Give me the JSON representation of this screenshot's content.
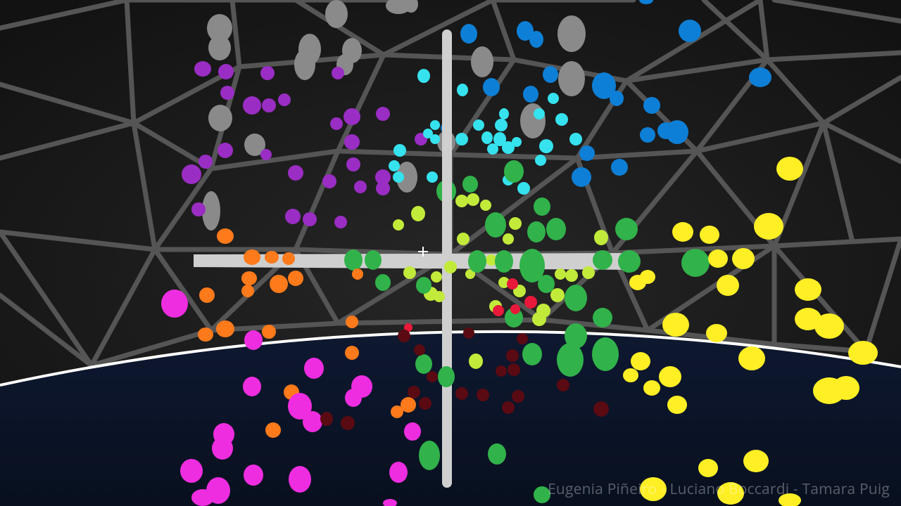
{
  "credits": "Eugenia Piñeiro - Luciano Boccardi - Tamara Puig",
  "colors": {
    "sky": "#141414",
    "dome_lines": "#4d4d4d",
    "ground": "#0b1428",
    "horizon": "#ffffff",
    "axes": "#d0d0d0",
    "gray": "#8a8a8a",
    "purple": "#9a2dc4",
    "blue": "#0d7fd6",
    "cyan": "#35e2ee",
    "green": "#31b24a",
    "lime": "#c2ea3a",
    "yellow": "#ffef24",
    "orange": "#ff7a1a",
    "magenta": "#ef2de0",
    "red": "#e8193a",
    "dark_red": "#5a0a12"
  }
}
